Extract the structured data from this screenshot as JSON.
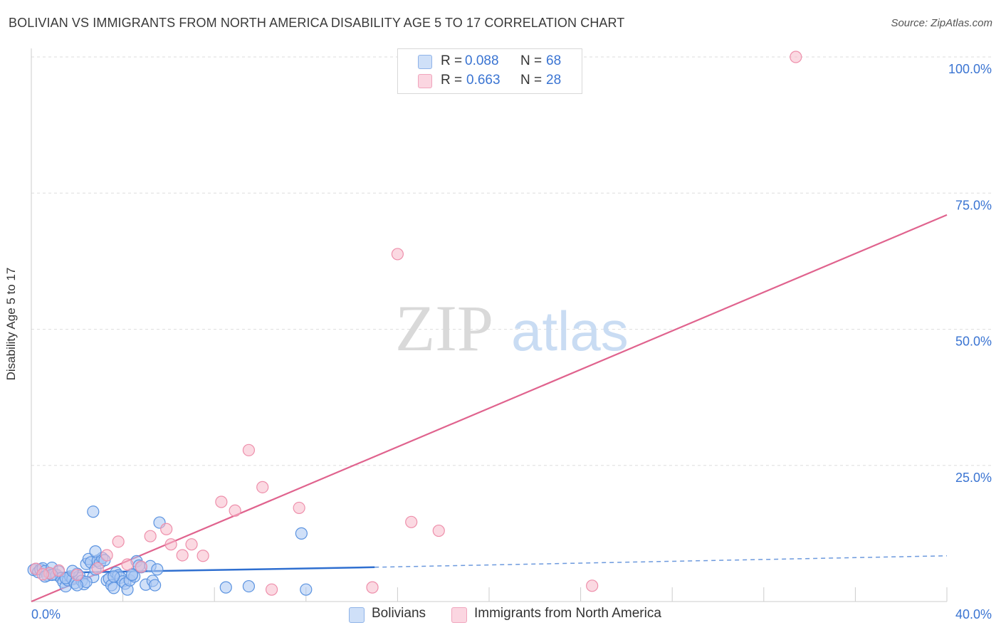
{
  "header": {
    "title": "BOLIVIAN VS IMMIGRANTS FROM NORTH AMERICA DISABILITY AGE 5 TO 17 CORRELATION CHART",
    "source": "Source: ZipAtlas.com"
  },
  "watermark": {
    "zip": "ZIP",
    "atlas": "atlas"
  },
  "legend": {
    "rows": [
      {
        "r_label": "R =",
        "r_value": "0.088",
        "n_label": "N =",
        "n_value": "68",
        "color": "#a9c7f2"
      },
      {
        "r_label": "R =",
        "r_value": "0.663",
        "n_label": "N =",
        "n_value": "28",
        "color": "#f7b9cb"
      }
    ]
  },
  "chart_data": {
    "type": "scatter",
    "title": "BOLIVIAN VS IMMIGRANTS FROM NORTH AMERICA DISABILITY AGE 5 TO 17 CORRELATION CHART",
    "xlabel": "",
    "ylabel": "Disability Age 5 to 17",
    "xlim": [
      0,
      40
    ],
    "ylim": [
      0,
      100
    ],
    "x_tick_labels": [
      "0.0%",
      "40.0%"
    ],
    "y_tick_labels": [
      "25.0%",
      "50.0%",
      "75.0%",
      "100.0%"
    ],
    "y_ticks": [
      25,
      50,
      75,
      100
    ],
    "grid": true,
    "series": [
      {
        "name": "Bolivians",
        "color": "#5b93e0",
        "fill": "#a9c7f2",
        "line_color": "#2f6fd0",
        "trend": {
          "x0": 0,
          "y0": 5.2,
          "x1": 15,
          "y1": 6.3,
          "dashed_to_x": 40,
          "dashed_to_y": 8.4
        },
        "points": [
          [
            0.1,
            5.8
          ],
          [
            0.2,
            6.0
          ],
          [
            0.3,
            5.4
          ],
          [
            0.4,
            5.9
          ],
          [
            0.5,
            6.1
          ],
          [
            0.6,
            5.6
          ],
          [
            0.7,
            4.8
          ],
          [
            0.8,
            5.2
          ],
          [
            0.9,
            6.2
          ],
          [
            1.0,
            5.0
          ],
          [
            1.1,
            4.9
          ],
          [
            1.2,
            5.5
          ],
          [
            1.3,
            4.3
          ],
          [
            1.4,
            3.6
          ],
          [
            1.5,
            2.8
          ],
          [
            1.6,
            3.9
          ],
          [
            1.7,
            4.6
          ],
          [
            1.8,
            4.1
          ],
          [
            1.9,
            3.4
          ],
          [
            2.0,
            5.1
          ],
          [
            2.1,
            4.7
          ],
          [
            2.2,
            3.8
          ],
          [
            2.3,
            3.2
          ],
          [
            2.4,
            6.9
          ],
          [
            2.5,
            7.8
          ],
          [
            2.6,
            7.2
          ],
          [
            2.7,
            4.5
          ],
          [
            2.8,
            5.9
          ],
          [
            2.9,
            7.5
          ],
          [
            3.0,
            7.1
          ],
          [
            3.1,
            8.0
          ],
          [
            3.2,
            7.6
          ],
          [
            3.3,
            3.9
          ],
          [
            3.4,
            4.2
          ],
          [
            3.5,
            3.0
          ],
          [
            3.6,
            2.5
          ],
          [
            3.7,
            5.3
          ],
          [
            3.8,
            4.8
          ],
          [
            3.9,
            4.4
          ],
          [
            4.0,
            3.7
          ],
          [
            4.1,
            3.3
          ],
          [
            4.2,
            2.2
          ],
          [
            4.3,
            3.9
          ],
          [
            4.4,
            5.0
          ],
          [
            4.5,
            4.6
          ],
          [
            4.6,
            7.4
          ],
          [
            4.7,
            6.6
          ],
          [
            4.8,
            6.3
          ],
          [
            5.0,
            3.1
          ],
          [
            5.2,
            6.5
          ],
          [
            5.5,
            5.9
          ],
          [
            5.3,
            3.8
          ],
          [
            5.4,
            3.0
          ],
          [
            5.6,
            14.5
          ],
          [
            2.7,
            16.5
          ],
          [
            2.8,
            9.2
          ],
          [
            2.4,
            3.6
          ],
          [
            1.5,
            4.3
          ],
          [
            1.8,
            5.6
          ],
          [
            2.0,
            3.0
          ],
          [
            0.6,
            4.6
          ],
          [
            0.9,
            4.9
          ],
          [
            3.6,
            4.6
          ],
          [
            4.4,
            4.9
          ],
          [
            8.5,
            2.6
          ],
          [
            9.5,
            2.8
          ],
          [
            11.8,
            12.5
          ],
          [
            12.0,
            2.2
          ]
        ]
      },
      {
        "name": "Immigrants from North America",
        "color": "#ee8fab",
        "fill": "#f7b9cb",
        "line_color": "#e0638e",
        "trend": {
          "x0": 0,
          "y0": -0.5,
          "x1": 40,
          "y1": 71.0
        },
        "points": [
          [
            0.2,
            6.0
          ],
          [
            0.8,
            5.2
          ],
          [
            1.2,
            5.7
          ],
          [
            2.0,
            4.9
          ],
          [
            2.9,
            6.1
          ],
          [
            3.3,
            8.5
          ],
          [
            3.8,
            11.0
          ],
          [
            4.2,
            6.8
          ],
          [
            4.8,
            6.4
          ],
          [
            5.2,
            12.0
          ],
          [
            5.9,
            13.3
          ],
          [
            6.1,
            10.5
          ],
          [
            6.6,
            8.5
          ],
          [
            7.0,
            10.5
          ],
          [
            7.5,
            8.4
          ],
          [
            8.3,
            18.3
          ],
          [
            8.9,
            16.7
          ],
          [
            9.5,
            27.8
          ],
          [
            10.1,
            21.0
          ],
          [
            10.5,
            2.2
          ],
          [
            11.7,
            17.2
          ],
          [
            14.9,
            2.6
          ],
          [
            16.0,
            63.8
          ],
          [
            16.6,
            14.6
          ],
          [
            17.8,
            13.0
          ],
          [
            24.5,
            2.9
          ],
          [
            33.4,
            100.0
          ],
          [
            0.5,
            5.0
          ]
        ]
      }
    ]
  },
  "bottom_legend": {
    "items": [
      {
        "label": "Bolivians",
        "color": "#a9c7f2"
      },
      {
        "label": "Immigrants from North America",
        "color": "#f7b9cb"
      }
    ]
  }
}
